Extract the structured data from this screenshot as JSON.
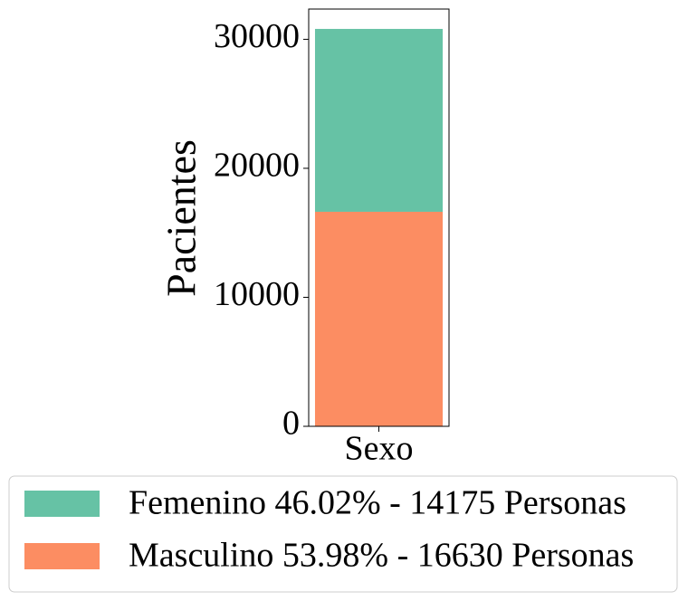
{
  "chart_data": {
    "type": "stacked_bar",
    "y_label": "Pacientes",
    "categories": [
      "Sexo"
    ],
    "series": [
      {
        "name": "Femenino 46.02% - 14175 Personas",
        "color": "#66c2a5",
        "values": [
          14175
        ]
      },
      {
        "name": "Masculino 53.98% - 16630 Personas",
        "color": "#fc8d62",
        "values": [
          16630
        ]
      }
    ],
    "ylim": [
      0,
      32345
    ],
    "yticks": [
      0,
      10000,
      20000,
      30000
    ],
    "grid": false,
    "legend": "bottom"
  }
}
